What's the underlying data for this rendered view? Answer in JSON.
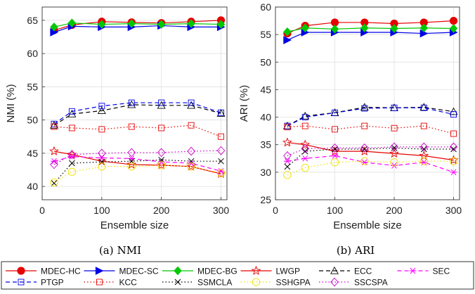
{
  "chart_data": [
    {
      "type": "line",
      "title": "",
      "caption_label": "(a)",
      "caption_name": "NMI",
      "xlabel": "Ensemble size",
      "ylabel": "NMI (%)",
      "xlim": [
        0,
        310
      ],
      "ylim": [
        38,
        67
      ],
      "xticks": [
        0,
        100,
        200,
        300
      ],
      "yticks": [
        40,
        45,
        50,
        55,
        60,
        65
      ],
      "grid": true,
      "x": [
        20,
        50,
        100,
        150,
        200,
        250,
        300
      ],
      "series": [
        {
          "name": "MDEC-HC",
          "values": [
            63.5,
            64.3,
            64.8,
            64.7,
            64.6,
            64.8,
            65.0
          ]
        },
        {
          "name": "MDEC-SC",
          "values": [
            63.2,
            64.1,
            64.0,
            64.0,
            64.2,
            64.0,
            64.0
          ]
        },
        {
          "name": "MDEC-BG",
          "values": [
            64.0,
            64.6,
            64.4,
            64.5,
            64.4,
            64.5,
            64.4
          ]
        },
        {
          "name": "LWGP",
          "values": [
            45.3,
            44.8,
            43.8,
            43.3,
            43.2,
            43.0,
            41.9
          ]
        },
        {
          "name": "ECC",
          "values": [
            49.2,
            50.9,
            51.4,
            52.3,
            52.2,
            52.2,
            51.0
          ]
        },
        {
          "name": "SEC",
          "values": [
            43.8,
            44.5,
            44.3,
            44.2,
            43.7,
            43.5,
            42.3
          ]
        },
        {
          "name": "PTGP",
          "values": [
            49.4,
            51.3,
            52.1,
            52.6,
            52.6,
            52.6,
            51.1
          ]
        },
        {
          "name": "KCC",
          "values": [
            49.0,
            48.8,
            48.6,
            49.0,
            48.8,
            49.2,
            47.5
          ]
        },
        {
          "name": "SSMCLA",
          "values": [
            40.5,
            43.5,
            43.7,
            43.8,
            44.0,
            43.8,
            43.8
          ]
        },
        {
          "name": "SSHGPA",
          "values": [
            40.6,
            42.2,
            43.0,
            43.0,
            43.2,
            43.0,
            42.0
          ]
        },
        {
          "name": "SSCSPA",
          "values": [
            43.3,
            44.8,
            45.0,
            45.1,
            45.1,
            45.3,
            45.4
          ]
        }
      ]
    },
    {
      "type": "line",
      "title": "",
      "caption_label": "(b)",
      "caption_name": "ARI",
      "xlabel": "Ensemble size",
      "ylabel": "ARI (%)",
      "xlim": [
        0,
        310
      ],
      "ylim": [
        25,
        60
      ],
      "xticks": [
        0,
        100,
        200,
        300
      ],
      "yticks": [
        25,
        30,
        35,
        40,
        45,
        50,
        55,
        60
      ],
      "grid": true,
      "x": [
        20,
        50,
        100,
        150,
        200,
        250,
        300
      ],
      "series": [
        {
          "name": "MDEC-HC",
          "values": [
            55.2,
            56.6,
            57.2,
            57.2,
            57.0,
            57.2,
            57.5
          ]
        },
        {
          "name": "MDEC-SC",
          "values": [
            54.0,
            55.4,
            55.4,
            55.4,
            55.4,
            55.2,
            55.4
          ]
        },
        {
          "name": "MDEC-BG",
          "values": [
            55.5,
            56.2,
            56.0,
            56.2,
            56.1,
            56.2,
            56.1
          ]
        },
        {
          "name": "LWGP",
          "values": [
            35.4,
            35.0,
            33.8,
            33.8,
            33.4,
            33.0,
            32.2
          ]
        },
        {
          "name": "ECC",
          "values": [
            38.4,
            40.2,
            40.8,
            41.8,
            41.7,
            41.8,
            41.0
          ]
        },
        {
          "name": "SEC",
          "values": [
            32.0,
            32.5,
            33.0,
            31.8,
            31.2,
            31.8,
            30.0
          ]
        },
        {
          "name": "PTGP",
          "values": [
            38.4,
            40.0,
            40.8,
            41.6,
            41.7,
            41.7,
            40.5
          ]
        },
        {
          "name": "KCC",
          "values": [
            38.2,
            38.4,
            37.8,
            38.4,
            38.0,
            38.4,
            37.0
          ]
        },
        {
          "name": "SSMCLA",
          "values": [
            31.0,
            33.8,
            34.2,
            34.2,
            34.4,
            34.2,
            34.2
          ]
        },
        {
          "name": "SSHGPA",
          "values": [
            29.5,
            30.8,
            31.8,
            32.0,
            31.8,
            32.0,
            32.0
          ]
        },
        {
          "name": "SSCSPA",
          "values": [
            33.0,
            34.3,
            34.4,
            34.4,
            34.6,
            34.6,
            34.6
          ]
        }
      ]
    }
  ],
  "legend": [
    {
      "label": "MDEC-HC",
      "color": "#e60000",
      "dash": "solid",
      "marker": "circle-filled"
    },
    {
      "label": "MDEC-SC",
      "color": "#0000e6",
      "dash": "solid",
      "marker": "triangle-right-filled"
    },
    {
      "label": "MDEC-BG",
      "color": "#00c800",
      "dash": "solid",
      "marker": "diamond-filled"
    },
    {
      "label": "LWGP",
      "color": "#e60000",
      "dash": "solid",
      "marker": "star"
    },
    {
      "label": "ECC",
      "color": "#000000",
      "dash": "dash",
      "marker": "triangle-up-open"
    },
    {
      "label": "SEC",
      "color": "#ff00ff",
      "dash": "dash",
      "marker": "asterisk"
    },
    {
      "label": "PTGP",
      "color": "#0000e6",
      "dash": "dash",
      "marker": "square-open"
    },
    {
      "label": "KCC",
      "color": "#e60000",
      "dash": "dot",
      "marker": "square-open"
    },
    {
      "label": "SSMCLA",
      "color": "#000000",
      "dash": "dot",
      "marker": "x"
    },
    {
      "label": "SSHGPA",
      "color": "#f0e000",
      "dash": "dot",
      "marker": "circle-open"
    },
    {
      "label": "SSCSPA",
      "color": "#cc00cc",
      "dash": "dot",
      "marker": "diamond-open"
    }
  ]
}
